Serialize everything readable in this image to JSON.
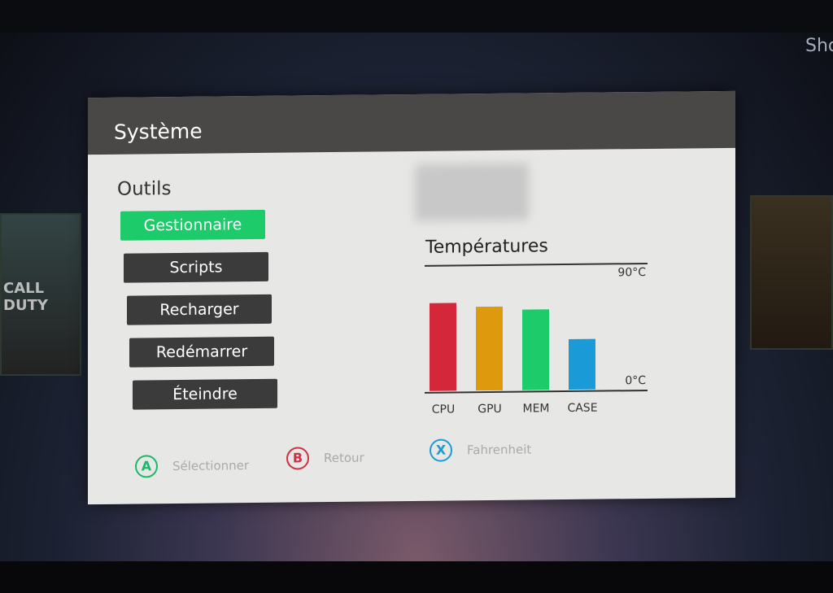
{
  "background": {
    "corner_text": "Sho",
    "tile_left_text": "CALL DUTY"
  },
  "header": {
    "title": "Système"
  },
  "tools": {
    "title": "Outils",
    "items": [
      {
        "label": "Gestionnaire",
        "selected": true
      },
      {
        "label": "Scripts",
        "selected": false
      },
      {
        "label": "Recharger",
        "selected": false
      },
      {
        "label": "Redémarrer",
        "selected": false
      },
      {
        "label": "Éteindre",
        "selected": false
      }
    ]
  },
  "temperatures": {
    "title": "Températures"
  },
  "chart_data": {
    "type": "bar",
    "title": "Températures",
    "categories": [
      "CPU",
      "GPU",
      "MEM",
      "CASE"
    ],
    "values": [
      63,
      60,
      58,
      36
    ],
    "unit": "°C",
    "ylim": [
      0,
      90
    ],
    "ytick_labels": [
      "90°C",
      "0°C"
    ],
    "colors": [
      "#d4283a",
      "#dc9a0c",
      "#1ecb6b",
      "#1a9bd8"
    ]
  },
  "hints": [
    {
      "button": "A",
      "label": "Sélectionner",
      "color": "#1cb86a"
    },
    {
      "button": "B",
      "label": "Retour",
      "color": "#d03040"
    },
    {
      "button": "X",
      "label": "Fahrenheit",
      "color": "#1a9bd8"
    }
  ],
  "colors": {
    "accent": "#1ecb6b",
    "header": "#4a4846"
  }
}
